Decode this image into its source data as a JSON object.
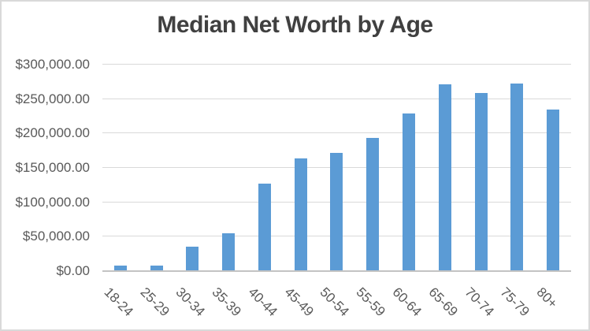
{
  "chart_data": {
    "type": "bar",
    "title": "Median Net Worth by Age",
    "categories": [
      "18-24",
      "25-29",
      "30-34",
      "35-39",
      "40-44",
      "45-49",
      "50-54",
      "55-59",
      "60-64",
      "65-69",
      "70-74",
      "75-79",
      "80+"
    ],
    "values": [
      8216,
      7512,
      35112,
      55519,
      127345,
      164197,
      171320,
      193549,
      228833,
      271805,
      258531,
      272976,
      235193
    ],
    "xlabel": "",
    "ylabel": "",
    "ylim": [
      0,
      300000
    ],
    "y_tick_step": 50000,
    "y_tick_labels_bottom_up": [
      "$0.00",
      "$50,000.00",
      "$100,000.00",
      "$150,000.00",
      "$200,000.00",
      "$250,000.00",
      "$300,000.00"
    ],
    "grid": true,
    "legend": false,
    "x_label_rotation_deg": 45,
    "colors": {
      "bar": "#5B9BD5",
      "gridline": "#D9D9D9",
      "axis_line": "#C3C3C3",
      "tick_text": "#595959",
      "title_text": "#404040",
      "background": "#FFFFFF",
      "frame_border": "#D9D9D9"
    }
  }
}
